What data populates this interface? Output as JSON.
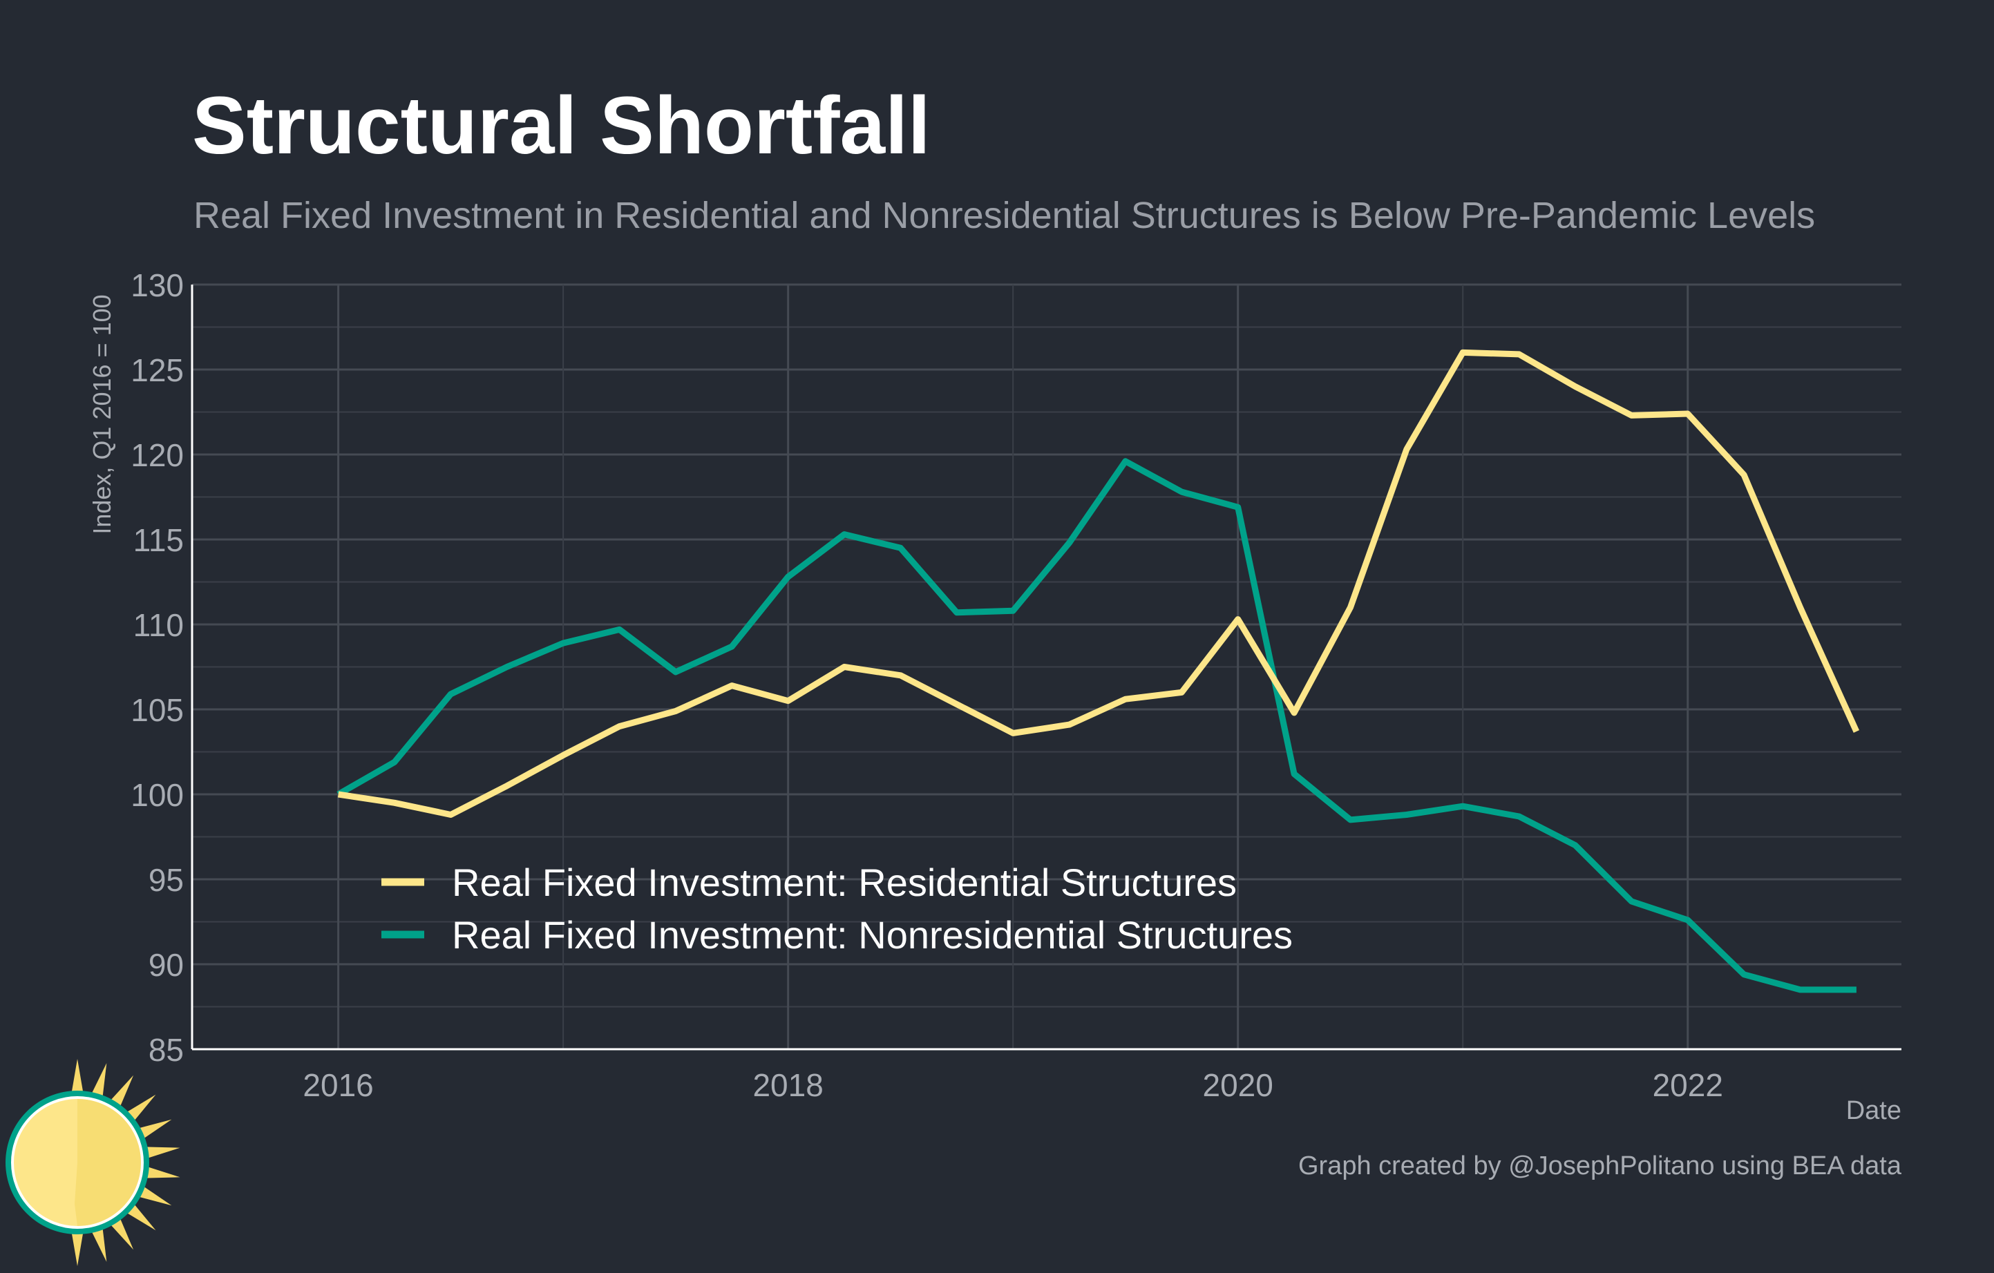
{
  "chart_data": {
    "type": "line",
    "title": "Structural Shortfall",
    "subtitle": "Real Fixed Investment in Residential and Nonresidential Structures is Below Pre-Pandemic Levels",
    "xlabel": "Date",
    "ylabel": "Index, Q1 2016 = 100",
    "caption": "Graph created by @JosephPolitano using BEA data",
    "xlim": [
      2015.35,
      2022.95
    ],
    "ylim": [
      85,
      130
    ],
    "x_ticks": [
      2016,
      2018,
      2020,
      2022
    ],
    "y_ticks": [
      85,
      90,
      95,
      100,
      105,
      110,
      115,
      120,
      125,
      130
    ],
    "grid": true,
    "legend_position": "bottom-left",
    "x": [
      2016.0,
      2016.25,
      2016.5,
      2016.75,
      2017.0,
      2017.25,
      2017.5,
      2017.75,
      2018.0,
      2018.25,
      2018.5,
      2018.75,
      2019.0,
      2019.25,
      2019.5,
      2019.75,
      2020.0,
      2020.25,
      2020.5,
      2020.75,
      2021.0,
      2021.25,
      2021.5,
      2021.75,
      2022.0,
      2022.25,
      2022.5,
      2022.75
    ],
    "series": [
      {
        "name": "Real Fixed Investment: Residential Structures",
        "color": "#fde68a",
        "values": [
          100.0,
          99.5,
          98.8,
          100.5,
          102.3,
          104.0,
          104.9,
          106.4,
          105.5,
          107.5,
          107.0,
          105.3,
          103.6,
          104.1,
          105.6,
          106.0,
          110.3,
          104.8,
          111.0,
          120.3,
          126.0,
          125.9,
          124.0,
          122.3,
          122.4,
          118.8,
          111.0,
          103.7
        ]
      },
      {
        "name": "Real Fixed Investment: Nonresidential Structures",
        "color": "#00a28a",
        "values": [
          100.0,
          101.9,
          105.9,
          107.5,
          108.9,
          109.7,
          107.2,
          108.7,
          112.8,
          115.3,
          114.5,
          110.7,
          110.8,
          114.8,
          119.6,
          117.8,
          116.9,
          101.2,
          98.5,
          98.8,
          99.3,
          98.7,
          97.0,
          93.7,
          92.6,
          89.4,
          88.5,
          88.5
        ]
      }
    ]
  }
}
